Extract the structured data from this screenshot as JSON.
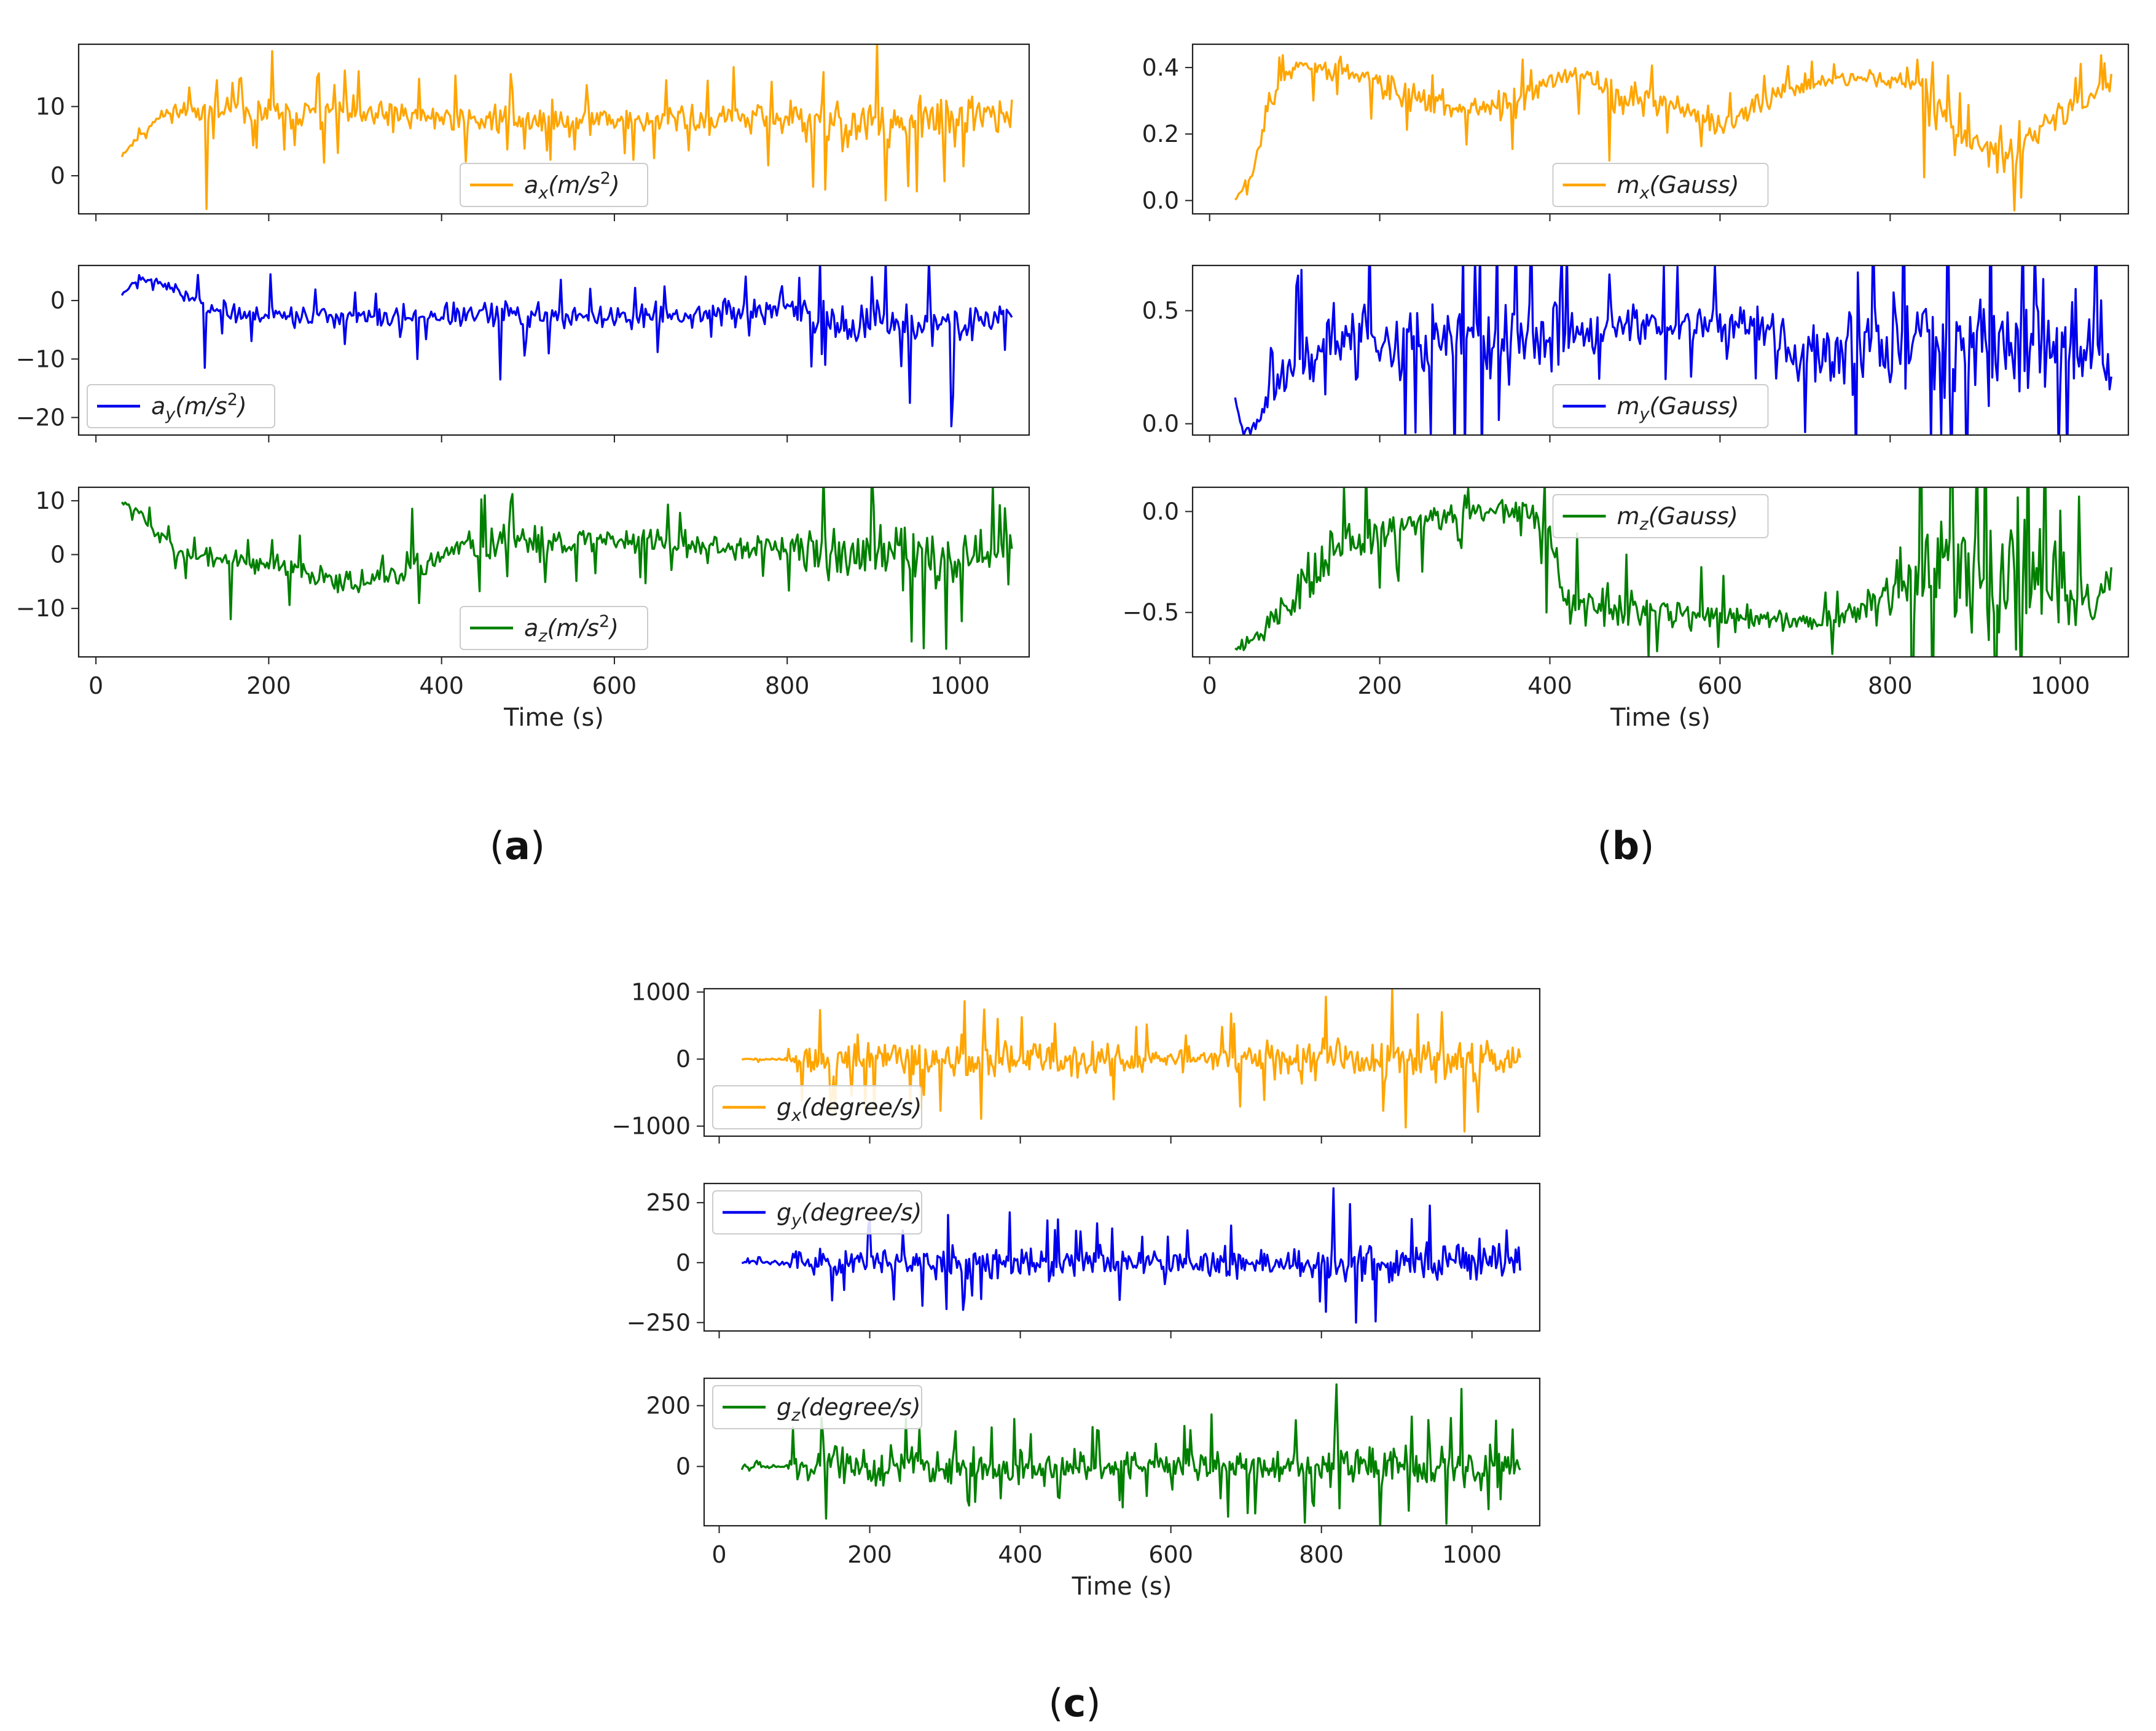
{
  "figure": {
    "panel_labels": [
      {
        "open": "(",
        "letter": "a",
        "close": ")"
      },
      {
        "open": "(",
        "letter": "b",
        "close": ")"
      },
      {
        "open": "(",
        "letter": "c",
        "close": ")"
      }
    ]
  },
  "chart_data": [
    {
      "id": "ax",
      "type": "line",
      "panel": "a",
      "series_name": "a_x(m/s^2)",
      "legend": {
        "base": "a",
        "sub": "x",
        "unit": "(m/s",
        "sup": "2",
        "close": ")"
      },
      "color": "#FFA500",
      "xlim": [
        -20,
        1080
      ],
      "ylim": [
        -5.5,
        19
      ],
      "yticks": [
        0,
        10
      ],
      "ytick_labels": [
        "0",
        "10"
      ],
      "xticks": [
        0,
        200,
        400,
        600,
        800,
        1000
      ],
      "xtick_labels": [
        "0",
        "200",
        "400",
        "600",
        "800",
        "1000"
      ],
      "xlabel": "",
      "legend_loc": "lower-center",
      "envelope": {
        "t": [
          30,
          60,
          80,
          100,
          200,
          400,
          600,
          800,
          850,
          950,
          1060
        ],
        "mean": [
          3,
          7,
          9,
          9.5,
          9,
          8.5,
          8,
          8.2,
          7.5,
          7.5,
          9
        ],
        "amp": [
          0.4,
          0.6,
          0.8,
          1.5,
          2,
          2,
          1.8,
          2.5,
          3.5,
          3.5,
          2.5
        ]
      },
      "spikes": [
        {
          "t": 127,
          "v": -4.8
        },
        {
          "t": 203,
          "v": 18
        },
        {
          "t": 373,
          "v": 14
        },
        {
          "t": 843,
          "v": -2
        },
        {
          "t": 475,
          "v": 3.8
        },
        {
          "t": 660,
          "v": 13.8
        },
        {
          "t": 940,
          "v": -1.5
        }
      ],
      "seed": 11
    },
    {
      "id": "ay",
      "type": "line",
      "panel": "a",
      "series_name": "a_y(m/s^2)",
      "legend": {
        "base": "a",
        "sub": "y",
        "unit": "(m/s",
        "sup": "2",
        "close": ")"
      },
      "color": "#0000EE",
      "xlim": [
        -20,
        1080
      ],
      "ylim": [
        -23,
        6
      ],
      "yticks": [
        -20,
        -10,
        0
      ],
      "ytick_labels": [
        "−20",
        "−10",
        "0"
      ],
      "xticks": [
        0,
        200,
        400,
        600,
        800,
        1000
      ],
      "xtick_labels": [
        "0",
        "200",
        "400",
        "600",
        "800",
        "1000"
      ],
      "xlabel": "",
      "legend_loc": "lower-left",
      "envelope": {
        "t": [
          30,
          50,
          70,
          100,
          150,
          300,
          450,
          600,
          800,
          870,
          1000,
          1060
        ],
        "mean": [
          1,
          4,
          3.5,
          1,
          -2,
          -3,
          -2.5,
          -3,
          -1.5,
          -4,
          -4,
          -2
        ],
        "amp": [
          0.3,
          0.6,
          0.5,
          1.2,
          1.5,
          1.5,
          2,
          1.8,
          2,
          3.5,
          3.5,
          1.5
        ]
      },
      "spikes": [
        {
          "t": 126,
          "v": -11.5
        },
        {
          "t": 202,
          "v": 4.5
        },
        {
          "t": 371,
          "v": -10
        },
        {
          "t": 468,
          "v": -13.5
        },
        {
          "t": 843,
          "v": -11
        },
        {
          "t": 941,
          "v": -17.5
        },
        {
          "t": 990,
          "v": -21.5
        }
      ],
      "seed": 23
    },
    {
      "id": "az",
      "type": "line",
      "panel": "a",
      "series_name": "a_z(m/s^2)",
      "legend": {
        "base": "a",
        "sub": "z",
        "unit": "(m/s",
        "sup": "2",
        "close": ")"
      },
      "color": "#008000",
      "xlim": [
        -20,
        1080
      ],
      "ylim": [
        -19,
        12.5
      ],
      "yticks": [
        -10,
        0,
        10
      ],
      "ytick_labels": [
        "−10",
        "0",
        "10"
      ],
      "xticks": [
        0,
        200,
        400,
        600,
        800,
        1000
      ],
      "xtick_labels": [
        "0",
        "200",
        "400",
        "600",
        "800",
        "1000"
      ],
      "xlabel": "Time (s)",
      "legend_loc": "lower-center",
      "envelope": {
        "t": [
          30,
          50,
          70,
          100,
          200,
          300,
          360,
          400,
          450,
          600,
          800,
          850,
          1000,
          1060
        ],
        "mean": [
          10,
          8,
          4,
          0,
          -2,
          -5,
          -4,
          0,
          2,
          3,
          1,
          0,
          0,
          1
        ],
        "amp": [
          0.5,
          0.8,
          1,
          1.5,
          2,
          2,
          2,
          2.5,
          3,
          2.5,
          2.5,
          5,
          5,
          3
        ]
      },
      "spikes": [
        {
          "t": 365,
          "v": 8.5
        },
        {
          "t": 450,
          "v": 11
        },
        {
          "t": 373,
          "v": -9
        },
        {
          "t": 983,
          "v": -17.5
        },
        {
          "t": 155,
          "v": -12
        },
        {
          "t": 900,
          "v": 9
        }
      ],
      "seed": 37
    },
    {
      "id": "mx",
      "type": "line",
      "panel": "b",
      "series_name": "m_x(Gauss)",
      "legend": {
        "base": "m",
        "sub": "x",
        "unit": "(Gauss",
        "sup": "",
        "close": ")"
      },
      "color": "#FFA500",
      "xlim": [
        -20,
        1080
      ],
      "ylim": [
        -0.04,
        0.47
      ],
      "yticks": [
        0.0,
        0.2,
        0.4
      ],
      "ytick_labels": [
        "0.0",
        "0.2",
        "0.4"
      ],
      "xticks": [
        0,
        200,
        400,
        600,
        800,
        1000
      ],
      "xtick_labels": [
        "0",
        "200",
        "400",
        "600",
        "800",
        "1000"
      ],
      "xlabel": "",
      "legend_loc": "lower-center",
      "envelope": {
        "t": [
          30,
          50,
          70,
          100,
          150,
          200,
          280,
          350,
          400,
          420,
          480,
          560,
          600,
          680,
          760,
          840,
          880,
          940,
          1000,
          1060
        ],
        "mean": [
          0.0,
          0.08,
          0.3,
          0.4,
          0.4,
          0.35,
          0.28,
          0.28,
          0.35,
          0.38,
          0.32,
          0.28,
          0.22,
          0.34,
          0.37,
          0.36,
          0.18,
          0.14,
          0.26,
          0.35
        ],
        "amp": [
          0.005,
          0.02,
          0.03,
          0.03,
          0.04,
          0.04,
          0.04,
          0.04,
          0.03,
          0.03,
          0.05,
          0.04,
          0.04,
          0.03,
          0.02,
          0.03,
          0.05,
          0.06,
          0.04,
          0.03
        ]
      },
      "spikes": [
        {
          "t": 470,
          "v": 0.12
        },
        {
          "t": 945,
          "v": -0.03
        },
        {
          "t": 840,
          "v": 0.07
        }
      ],
      "seed": 51
    },
    {
      "id": "my",
      "type": "line",
      "panel": "b",
      "series_name": "m_y(Gauss)",
      "legend": {
        "base": "m",
        "sub": "y",
        "unit": "(Gauss",
        "sup": "",
        "close": ")"
      },
      "color": "#0000EE",
      "xlim": [
        -20,
        1080
      ],
      "ylim": [
        -0.05,
        0.7
      ],
      "yticks": [
        0.0,
        0.5
      ],
      "ytick_labels": [
        "0.0",
        "0.5"
      ],
      "xticks": [
        0,
        200,
        400,
        600,
        800,
        1000
      ],
      "xtick_labels": [
        "0",
        "200",
        "400",
        "600",
        "800",
        "1000"
      ],
      "xlabel": "",
      "legend_loc": "lower-center",
      "envelope": {
        "t": [
          30,
          40,
          60,
          100,
          130,
          200,
          400,
          420,
          500,
          660,
          680,
          750,
          800,
          1060
        ],
        "mean": [
          0.12,
          -0.05,
          0.05,
          0.28,
          0.3,
          0.4,
          0.35,
          0.42,
          0.45,
          0.45,
          0.3,
          0.3,
          0.35,
          0.35
        ],
        "amp": [
          0.02,
          0.02,
          0.05,
          0.1,
          0.18,
          0.15,
          0.18,
          0.1,
          0.08,
          0.08,
          0.12,
          0.15,
          0.22,
          0.2
        ]
      },
      "spikes": [
        {
          "t": 470,
          "v": 0.66
        },
        {
          "t": 980,
          "v": 0.64
        },
        {
          "t": 860,
          "v": -0.05
        }
      ],
      "seed": 67
    },
    {
      "id": "mz",
      "type": "line",
      "panel": "b",
      "series_name": "m_z(Gauss)",
      "legend": {
        "base": "m",
        "sub": "z",
        "unit": "(Gauss",
        "sup": "",
        "close": ")"
      },
      "color": "#008000",
      "xlim": [
        -20,
        1080
      ],
      "ylim": [
        -0.72,
        0.12
      ],
      "yticks": [
        -0.5,
        0.0
      ],
      "ytick_labels": [
        "−0.5",
        "0.0"
      ],
      "xticks": [
        0,
        200,
        400,
        600,
        800,
        1000
      ],
      "xtick_labels": [
        "0",
        "200",
        "400",
        "600",
        "800",
        "1000"
      ],
      "xlabel": "Time (s)",
      "legend_loc": "upper-center",
      "envelope": {
        "t": [
          30,
          60,
          100,
          150,
          200,
          300,
          370,
          400,
          420,
          500,
          600,
          700,
          730,
          780,
          830,
          1000,
          1040,
          1060
        ],
        "mean": [
          -0.68,
          -0.6,
          -0.4,
          -0.2,
          -0.1,
          0.0,
          0.0,
          -0.1,
          -0.45,
          -0.5,
          -0.52,
          -0.55,
          -0.55,
          -0.45,
          -0.3,
          -0.3,
          -0.5,
          -0.3
        ],
        "amp": [
          0.02,
          0.05,
          0.12,
          0.12,
          0.1,
          0.05,
          0.05,
          0.08,
          0.1,
          0.1,
          0.06,
          0.04,
          0.05,
          0.08,
          0.3,
          0.3,
          0.05,
          0.08
        ]
      },
      "spikes": [
        {
          "t": 300,
          "v": 0.08
        },
        {
          "t": 395,
          "v": -0.5
        },
        {
          "t": 950,
          "v": 0.07
        }
      ],
      "seed": 79
    },
    {
      "id": "gx",
      "type": "line",
      "panel": "c",
      "series_name": "g_x(degree/s)",
      "legend": {
        "base": "g",
        "sub": "x",
        "unit": "(degree/s",
        "sup": "",
        "close": ")"
      },
      "color": "#FFA500",
      "xlim": [
        -20,
        1090
      ],
      "ylim": [
        -1150,
        1050
      ],
      "yticks": [
        -1000,
        0,
        1000
      ],
      "ytick_labels": [
        "−1000",
        "0",
        "1000"
      ],
      "xticks": [
        0,
        200,
        400,
        600,
        800,
        1000
      ],
      "xtick_labels": [
        "0",
        "200",
        "400",
        "600",
        "800",
        "1000"
      ],
      "xlabel": "",
      "legend_loc": "lower-left",
      "envelope": {
        "t": [
          30,
          90,
          100,
          200,
          400,
          500,
          600,
          650,
          700,
          800,
          1000,
          1065
        ],
        "mean": [
          0,
          0,
          0,
          0,
          0,
          0,
          0,
          0,
          0,
          0,
          0,
          0
        ],
        "amp": [
          10,
          20,
          230,
          250,
          280,
          230,
          150,
          150,
          230,
          300,
          320,
          180
        ]
      },
      "spikes": [
        {
          "t": 805,
          "v": 930
        },
        {
          "t": 990,
          "v": -1080
        },
        {
          "t": 370,
          "v": 600
        },
        {
          "t": 680,
          "v": 680
        },
        {
          "t": 960,
          "v": 700
        }
      ],
      "seed": 91
    },
    {
      "id": "gy",
      "type": "line",
      "panel": "c",
      "series_name": "g_y(degree/s)",
      "legend": {
        "base": "g",
        "sub": "y",
        "unit": "(degree/s",
        "sup": "",
        "close": ")"
      },
      "color": "#0000EE",
      "xlim": [
        -20,
        1090
      ],
      "ylim": [
        -285,
        330
      ],
      "yticks": [
        -250,
        0,
        250
      ],
      "ytick_labels": [
        "−250",
        "0",
        "250"
      ],
      "xticks": [
        0,
        200,
        400,
        600,
        800,
        1000
      ],
      "xtick_labels": [
        "0",
        "200",
        "400",
        "600",
        "800",
        "1000"
      ],
      "xlabel": "",
      "legend_loc": "upper-left",
      "envelope": {
        "t": [
          30,
          90,
          100,
          200,
          400,
          600,
          650,
          800,
          1000,
          1065
        ],
        "mean": [
          0,
          0,
          0,
          0,
          0,
          0,
          0,
          0,
          0,
          0
        ],
        "amp": [
          6,
          10,
          50,
          60,
          65,
          40,
          55,
          70,
          80,
          50
        ]
      },
      "spikes": [
        {
          "t": 815,
          "v": 310
        },
        {
          "t": 845,
          "v": -250
        },
        {
          "t": 805,
          "v": -205
        },
        {
          "t": 200,
          "v": 180
        },
        {
          "t": 270,
          "v": -180
        }
      ],
      "seed": 103
    },
    {
      "id": "gz",
      "type": "line",
      "panel": "c",
      "series_name": "g_z(degree/s)",
      "legend": {
        "base": "g",
        "sub": "z",
        "unit": "(degree/s",
        "sup": "",
        "close": ")"
      },
      "color": "#008000",
      "xlim": [
        -20,
        1090
      ],
      "ylim": [
        -195,
        290
      ],
      "yticks": [
        0,
        200
      ],
      "ytick_labels": [
        "0",
        "200"
      ],
      "xticks": [
        0,
        200,
        400,
        600,
        800,
        1000
      ],
      "xtick_labels": [
        "0",
        "200",
        "400",
        "600",
        "800",
        "1000"
      ],
      "xlabel": "Time (s)",
      "legend_loc": "upper-left",
      "envelope": {
        "t": [
          30,
          90,
          100,
          200,
          400,
          600,
          650,
          800,
          1000,
          1065
        ],
        "mean": [
          0,
          0,
          0,
          0,
          0,
          0,
          0,
          0,
          0,
          0
        ],
        "amp": [
          5,
          8,
          45,
          55,
          50,
          35,
          50,
          55,
          70,
          40
        ]
      },
      "spikes": [
        {
          "t": 820,
          "v": 270
        },
        {
          "t": 985,
          "v": 255
        },
        {
          "t": 675,
          "v": -165
        },
        {
          "t": 580,
          "v": 75
        },
        {
          "t": 790,
          "v": -130
        }
      ],
      "seed": 117
    }
  ]
}
